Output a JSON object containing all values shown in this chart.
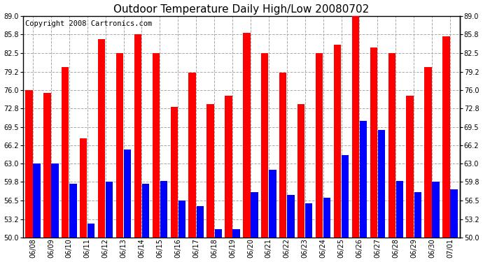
{
  "title": "Outdoor Temperature Daily High/Low 20080702",
  "copyright": "Copyright 2008 Cartronics.com",
  "dates": [
    "06/08",
    "06/09",
    "06/10",
    "06/11",
    "06/12",
    "06/13",
    "06/14",
    "06/15",
    "06/16",
    "06/17",
    "06/18",
    "06/19",
    "06/20",
    "06/21",
    "06/22",
    "06/23",
    "06/24",
    "06/25",
    "06/26",
    "06/27",
    "06/28",
    "06/29",
    "06/30",
    "07/01"
  ],
  "highs": [
    76.0,
    75.5,
    80.0,
    67.5,
    85.0,
    82.5,
    85.8,
    82.5,
    73.0,
    79.0,
    73.5,
    75.0,
    86.0,
    82.5,
    79.0,
    73.5,
    82.5,
    84.0,
    89.0,
    83.5,
    82.5,
    75.0,
    80.0,
    85.5
  ],
  "lows": [
    63.0,
    63.0,
    59.5,
    52.5,
    59.8,
    65.5,
    59.5,
    60.0,
    56.5,
    55.5,
    51.5,
    51.5,
    58.0,
    62.0,
    57.5,
    56.0,
    57.0,
    64.5,
    70.5,
    69.0,
    60.0,
    58.0,
    59.8,
    58.5
  ],
  "high_color": "#ff0000",
  "low_color": "#0000ff",
  "ymin": 50.0,
  "ymax": 89.0,
  "yticks": [
    50.0,
    53.2,
    56.5,
    59.8,
    63.0,
    66.2,
    69.5,
    72.8,
    76.0,
    79.2,
    82.5,
    85.8,
    89.0
  ],
  "bg_color": "#ffffff",
  "grid_color": "#aaaaaa",
  "title_fontsize": 11,
  "copyright_fontsize": 7.5,
  "bar_width": 0.4,
  "bar_gap": 0.03
}
